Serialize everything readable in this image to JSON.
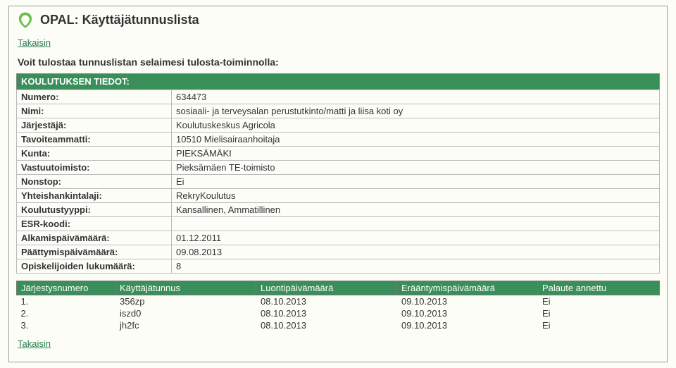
{
  "page": {
    "title": "OPAL: Käyttäjätunnuslista",
    "back_label": "Takaisin",
    "instruction": "Voit tulostaa tunnuslistan selaimesi tulosta-toiminnolla:",
    "section_header": "KOULUTUKSEN TIEDOT:"
  },
  "colors": {
    "header_bg": "#3a8e5a",
    "header_fg": "#ffffff",
    "link": "#2a7a4f",
    "border": "#bbbbbb",
    "page_bg": "#fdfdf8"
  },
  "info_rows": [
    {
      "label": "Numero:",
      "value": "634473"
    },
    {
      "label": "Nimi:",
      "value": "sosiaali- ja terveysalan perustutkinto/matti ja liisa koti oy"
    },
    {
      "label": "Järjestäjä:",
      "value": "Koulutuskeskus Agricola"
    },
    {
      "label": "Tavoiteammatti:",
      "value": "10510 Mielisairaanhoitaja"
    },
    {
      "label": "Kunta:",
      "value": "PIEKSÄMÄKI"
    },
    {
      "label": "Vastuutoimisto:",
      "value": "Pieksämäen TE-toimisto"
    },
    {
      "label": "Nonstop:",
      "value": "Ei"
    },
    {
      "label": "Yhteishankintalaji:",
      "value": "RekryKoulutus"
    },
    {
      "label": "Koulutustyyppi:",
      "value": "Kansallinen, Ammatillinen"
    },
    {
      "label": "ESR-koodi:",
      "value": ""
    },
    {
      "label": "Alkamispäivämäärä:",
      "value": "01.12.2011"
    },
    {
      "label": "Päättymispäivämäärä:",
      "value": "09.08.2013"
    },
    {
      "label": "Opiskelijoiden lukumäärä:",
      "value": "8"
    }
  ],
  "user_table": {
    "columns": {
      "idx": "Järjestysnumero",
      "user": "Käyttäjätunnus",
      "created": "Luontipäivämäärä",
      "due": "Erääntymispäivämäärä",
      "feedback": "Palaute annettu"
    },
    "rows": [
      {
        "idx": "1.",
        "user": "356zp",
        "created": "08.10.2013",
        "due": "09.10.2013",
        "feedback": "Ei"
      },
      {
        "idx": "2.",
        "user": "iszd0",
        "created": "08.10.2013",
        "due": "09.10.2013",
        "feedback": "Ei"
      },
      {
        "idx": "3.",
        "user": "jh2fc",
        "created": "08.10.2013",
        "due": "09.10.2013",
        "feedback": "Ei"
      }
    ]
  }
}
